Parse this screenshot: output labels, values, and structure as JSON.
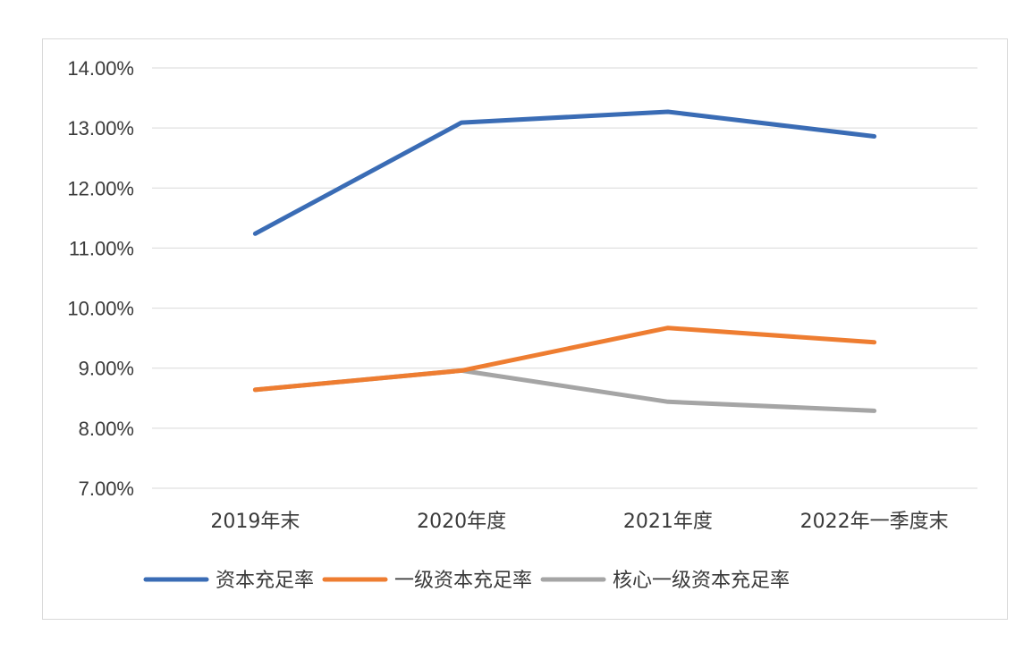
{
  "chart_data": {
    "type": "line",
    "title": "",
    "xlabel": "",
    "ylabel": "",
    "categories": [
      "2019年末",
      "2020年度",
      "2021年度",
      "2022年一季度末"
    ],
    "ylim": [
      7.0,
      14.0
    ],
    "yticks": [
      7.0,
      8.0,
      9.0,
      10.0,
      11.0,
      12.0,
      13.0,
      14.0
    ],
    "ytick_labels": [
      "7.00%",
      "8.00%",
      "9.00%",
      "10.00%",
      "11.00%",
      "12.00%",
      "13.00%",
      "14.00%"
    ],
    "grid": true,
    "legend_position": "bottom",
    "series": [
      {
        "name": "资本充足率",
        "color": "#3a6cb5",
        "values": [
          11.24,
          13.09,
          13.27,
          12.86
        ]
      },
      {
        "name": "一级资本充足率",
        "color": "#ee7d31",
        "values": [
          8.64,
          8.96,
          9.67,
          9.43
        ]
      },
      {
        "name": "核心一级资本充足率",
        "color": "#a5a5a5",
        "values": [
          8.64,
          8.96,
          8.44,
          8.29
        ]
      }
    ]
  }
}
